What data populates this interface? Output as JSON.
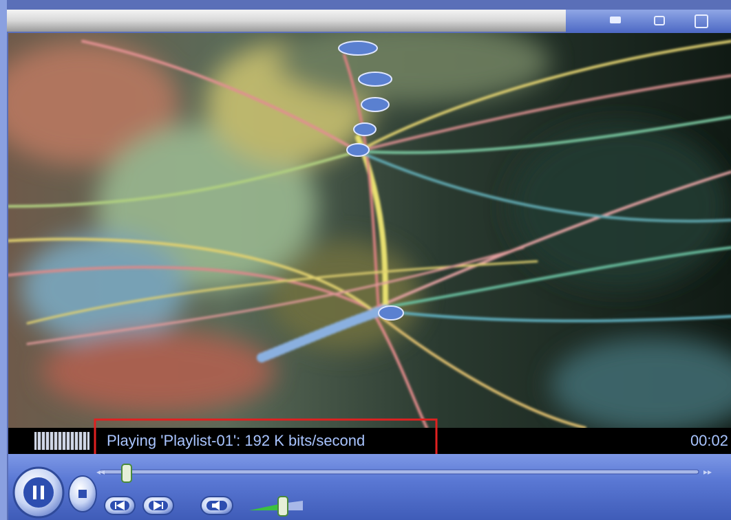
{
  "player": {
    "status": "Playing 'Playlist-01': 192 K bits/second",
    "time": "00:02"
  }
}
